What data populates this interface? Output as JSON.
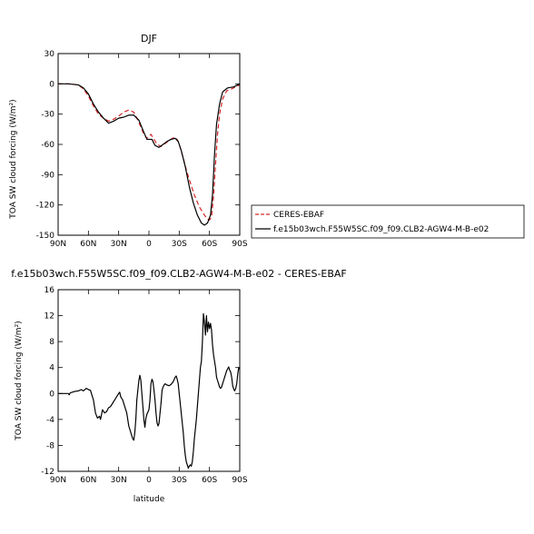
{
  "chart_data": [
    {
      "type": "line",
      "title": "DJF",
      "xlabel": "",
      "ylabel": "TOA SW cloud forcing (W/m²)",
      "xlim": [
        90,
        -90
      ],
      "ylim": [
        -150,
        30
      ],
      "x_ticks": [
        90,
        60,
        30,
        0,
        -30,
        -60,
        -90
      ],
      "x_tick_labels": [
        "90N",
        "60N",
        "30N",
        "0",
        "30S",
        "60S",
        "90S"
      ],
      "y_ticks": [
        30,
        0,
        -30,
        -60,
        -90,
        -120,
        -150
      ],
      "y_tick_labels": [
        "30",
        "0",
        "-30",
        "-60",
        "-90",
        "-120",
        "-150"
      ],
      "legend_position": "right",
      "series": [
        {
          "name": "CERES-EBAF",
          "color": "#d62728",
          "dash": "dashed",
          "points": [
            [
              90,
              0
            ],
            [
              80,
              0
            ],
            [
              70,
              -1
            ],
            [
              65,
              -5
            ],
            [
              60,
              -12
            ],
            [
              55,
              -22
            ],
            [
              50,
              -30
            ],
            [
              45,
              -34
            ],
            [
              40,
              -37
            ],
            [
              35,
              -35
            ],
            [
              30,
              -32
            ],
            [
              25,
              -28
            ],
            [
              20,
              -26
            ],
            [
              15,
              -28
            ],
            [
              10,
              -38
            ],
            [
              5,
              -50
            ],
            [
              2,
              -54
            ],
            [
              0,
              -52
            ],
            [
              -2,
              -50
            ],
            [
              -5,
              -55
            ],
            [
              -8,
              -60
            ],
            [
              -12,
              -62
            ],
            [
              -15,
              -60
            ],
            [
              -20,
              -56
            ],
            [
              -25,
              -53
            ],
            [
              -28,
              -55
            ],
            [
              -30,
              -60
            ],
            [
              -33,
              -70
            ],
            [
              -37,
              -85
            ],
            [
              -40,
              -95
            ],
            [
              -45,
              -110
            ],
            [
              -50,
              -122
            ],
            [
              -55,
              -130
            ],
            [
              -58,
              -134
            ],
            [
              -60,
              -135
            ],
            [
              -62,
              -132
            ],
            [
              -64,
              -112
            ],
            [
              -66,
              -80
            ],
            [
              -68,
              -50
            ],
            [
              -70,
              -30
            ],
            [
              -73,
              -15
            ],
            [
              -77,
              -7
            ],
            [
              -82,
              -5
            ],
            [
              -86,
              -3
            ],
            [
              -90,
              -1
            ]
          ]
        },
        {
          "name": "f.e15b03wch.F55W5SC.f09_f09.CLB2-AGW4-M-B-e02",
          "color": "#000000",
          "dash": "solid",
          "points": [
            [
              90,
              0
            ],
            [
              80,
              0
            ],
            [
              70,
              -1
            ],
            [
              65,
              -4
            ],
            [
              60,
              -10
            ],
            [
              55,
              -20
            ],
            [
              50,
              -28
            ],
            [
              45,
              -34
            ],
            [
              40,
              -39
            ],
            [
              35,
              -37
            ],
            [
              30,
              -34
            ],
            [
              25,
              -33
            ],
            [
              20,
              -31
            ],
            [
              15,
              -31
            ],
            [
              10,
              -36
            ],
            [
              5,
              -48
            ],
            [
              2,
              -55
            ],
            [
              0,
              -55
            ],
            [
              -3,
              -55
            ],
            [
              -6,
              -61
            ],
            [
              -10,
              -63
            ],
            [
              -14,
              -60
            ],
            [
              -18,
              -57
            ],
            [
              -22,
              -55
            ],
            [
              -26,
              -54
            ],
            [
              -29,
              -57
            ],
            [
              -32,
              -66
            ],
            [
              -36,
              -82
            ],
            [
              -40,
              -102
            ],
            [
              -44,
              -118
            ],
            [
              -48,
              -130
            ],
            [
              -52,
              -138
            ],
            [
              -55,
              -140
            ],
            [
              -58,
              -138
            ],
            [
              -61,
              -130
            ],
            [
              -63,
              -110
            ],
            [
              -65,
              -70
            ],
            [
              -67,
              -40
            ],
            [
              -70,
              -20
            ],
            [
              -73,
              -8
            ],
            [
              -78,
              -4
            ],
            [
              -84,
              -3
            ],
            [
              -88,
              -1
            ],
            [
              -90,
              0
            ]
          ]
        }
      ]
    },
    {
      "type": "line",
      "title": "f.e15b03wch.F55W5SC.f09_f09.CLB2-AGW4-M-B-e02 - CERES-EBAF",
      "xlabel": "latitude",
      "ylabel": "TOA SW cloud forcing (W/m²)",
      "xlim": [
        90,
        -90
      ],
      "ylim": [
        -12,
        16
      ],
      "x_ticks": [
        90,
        60,
        30,
        0,
        -30,
        -60,
        -90
      ],
      "x_tick_labels": [
        "90N",
        "60N",
        "30N",
        "0",
        "30S",
        "60S",
        "90S"
      ],
      "y_ticks": [
        16,
        12,
        8,
        4,
        0,
        -4,
        -8,
        -12
      ],
      "y_tick_labels": [
        "16",
        "12",
        "8",
        "4",
        "0",
        "-4",
        "-8",
        "-12"
      ],
      "series": [
        {
          "color": "#000000",
          "dash": "solid",
          "points": [
            [
              90,
              0
            ],
            [
              80,
              0
            ],
            [
              79,
              -0.2
            ],
            [
              78,
              0.1
            ],
            [
              74,
              0.3
            ],
            [
              70,
              0.4
            ],
            [
              67,
              0.6
            ],
            [
              65,
              0.4
            ],
            [
              62,
              0.8
            ],
            [
              60,
              0.6
            ],
            [
              58,
              0.5
            ],
            [
              55,
              -1
            ],
            [
              53,
              -3
            ],
            [
              51,
              -3.8
            ],
            [
              49,
              -3.5
            ],
            [
              48,
              -4
            ],
            [
              46,
              -2.5
            ],
            [
              44,
              -3
            ],
            [
              42,
              -2.8
            ],
            [
              40,
              -2.2
            ],
            [
              38,
              -2
            ],
            [
              36,
              -1.5
            ],
            [
              34,
              -1
            ],
            [
              32,
              -0.5
            ],
            [
              30,
              0
            ],
            [
              29,
              0.2
            ],
            [
              28,
              -0.5
            ],
            [
              26,
              -1
            ],
            [
              24,
              -2
            ],
            [
              22,
              -3
            ],
            [
              20,
              -5
            ],
            [
              18,
              -6
            ],
            [
              16,
              -7
            ],
            [
              15,
              -7.2
            ],
            [
              14,
              -6
            ],
            [
              13,
              -4
            ],
            [
              12,
              -1
            ],
            [
              10,
              2
            ],
            [
              9,
              2.8
            ],
            [
              8,
              2
            ],
            [
              6,
              -2
            ],
            [
              5,
              -4
            ],
            [
              4,
              -5.2
            ],
            [
              3,
              -3.8
            ],
            [
              2,
              -3.2
            ],
            [
              0,
              -2.5
            ],
            [
              -1,
              -1
            ],
            [
              -2,
              1.5
            ],
            [
              -3,
              2.2
            ],
            [
              -4,
              1.8
            ],
            [
              -5,
              0.5
            ],
            [
              -6,
              -1
            ],
            [
              -7,
              -3
            ],
            [
              -8,
              -4.5
            ],
            [
              -9,
              -5
            ],
            [
              -10,
              -4.6
            ],
            [
              -11,
              -3
            ],
            [
              -12,
              -1.5
            ],
            [
              -13,
              0.5
            ],
            [
              -14,
              1
            ],
            [
              -15,
              1.3
            ],
            [
              -16,
              1.5
            ],
            [
              -17,
              1.4
            ],
            [
              -18,
              1.3
            ],
            [
              -20,
              1.2
            ],
            [
              -22,
              1.4
            ],
            [
              -24,
              1.8
            ],
            [
              -26,
              2.5
            ],
            [
              -27,
              2.7
            ],
            [
              -28,
              2.2
            ],
            [
              -29,
              1.5
            ],
            [
              -30,
              0
            ],
            [
              -31,
              -1.5
            ],
            [
              -32,
              -3
            ],
            [
              -33,
              -4.5
            ],
            [
              -34,
              -6
            ],
            [
              -35,
              -8
            ],
            [
              -36,
              -9.5
            ],
            [
              -37,
              -10.5
            ],
            [
              -38,
              -11
            ],
            [
              -39,
              -11.5
            ],
            [
              -40,
              -11.2
            ],
            [
              -41,
              -11
            ],
            [
              -42,
              -11.2
            ],
            [
              -43,
              -10.5
            ],
            [
              -44,
              -9
            ],
            [
              -45,
              -7
            ],
            [
              -46,
              -5.5
            ],
            [
              -47,
              -4
            ],
            [
              -48,
              -2
            ],
            [
              -49,
              0
            ],
            [
              -50,
              2
            ],
            [
              -51,
              4
            ],
            [
              -52,
              5
            ],
            [
              -53,
              8
            ],
            [
              -54,
              12.3
            ],
            [
              -55,
              11
            ],
            [
              -56,
              9
            ],
            [
              -57,
              12
            ],
            [
              -58,
              9.5
            ],
            [
              -59,
              11
            ],
            [
              -60,
              10
            ],
            [
              -61,
              10.8
            ],
            [
              -62,
              9.8
            ],
            [
              -63,
              7.5
            ],
            [
              -64,
              6
            ],
            [
              -65,
              5
            ],
            [
              -66,
              4
            ],
            [
              -67,
              2.5
            ],
            [
              -68,
              2
            ],
            [
              -69,
              1.5
            ],
            [
              -70,
              1
            ],
            [
              -71,
              0.8
            ],
            [
              -72,
              1
            ],
            [
              -73,
              1.5
            ],
            [
              -74,
              2
            ],
            [
              -75,
              2.5
            ],
            [
              -76,
              3
            ],
            [
              -77,
              3.5
            ],
            [
              -78,
              3.8
            ],
            [
              -79,
              4.1
            ],
            [
              -80,
              3.6
            ],
            [
              -81,
              3.3
            ],
            [
              -82,
              2.5
            ],
            [
              -83,
              1.2
            ],
            [
              -84,
              0.7
            ],
            [
              -85,
              0.4
            ],
            [
              -86,
              0.8
            ],
            [
              -87,
              1.5
            ],
            [
              -88,
              3
            ],
            [
              -89,
              4
            ],
            [
              -90,
              3.8
            ]
          ]
        }
      ]
    }
  ]
}
